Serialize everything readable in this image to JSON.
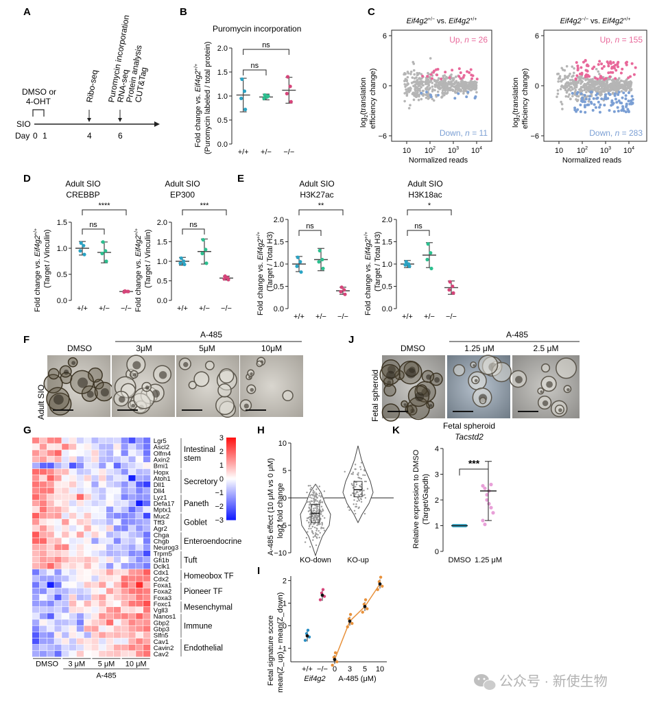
{
  "panels": {
    "A": "A",
    "B": "B",
    "C": "C",
    "D": "D",
    "E": "E",
    "F": "F",
    "G": "G",
    "H": "H",
    "I": "I",
    "J": "J",
    "K": "K"
  },
  "panelA": {
    "treat1": "DMSO or",
    "treat2": "4-OHT",
    "events": [
      "Ribo-seq",
      "Puromycin incorporation",
      "RNA-seq",
      "Protein analysis",
      "CUT&Tag"
    ],
    "row_label": "SIO",
    "day_label": "Day",
    "days": [
      "0",
      "1",
      "4",
      "6"
    ]
  },
  "panelB": {
    "title": "Puromycin incorporation",
    "ylabel_prefix": "Fold change vs. ",
    "ylabel_gene": "Eif4g2",
    "ylabel_sup": "+/+",
    "ylabel2": "(Puromycin labeled / total protein)",
    "yticks": [
      "0.0",
      "0.5",
      "1.0",
      "1.5",
      "2.0"
    ],
    "groups": [
      "+/+",
      "+/−",
      "−/−"
    ],
    "sig": [
      "ns",
      "ns"
    ],
    "chart_data": {
      "type": "scatter",
      "categories": [
        "+/+",
        "+/−",
        "−/−"
      ],
      "means": [
        1.02,
        0.98,
        1.12
      ],
      "sd": [
        0.35,
        0.06,
        0.27
      ],
      "points": [
        [
          1.35,
          1.1,
          0.95,
          0.72
        ],
        [
          1.02,
          0.98,
          0.95,
          1.0
        ],
        [
          1.4,
          1.2,
          1.05,
          0.88
        ]
      ],
      "ylim": [
        0,
        2.0
      ]
    }
  },
  "panelC": {
    "left": {
      "title_a": "Eif4g2",
      "title_a_sup": "+/−",
      "title_mid": " vs. ",
      "title_b": "Eif4g2",
      "title_b_sup": "+/+",
      "up": "Up, ",
      "n": "n",
      "up_n": " = 26",
      "down": "Down, ",
      "down_n": " = 11"
    },
    "right": {
      "title_a": "Eif4g2",
      "title_a_sup": "−/−",
      "title_mid": " vs. ",
      "title_b": "Eif4g2",
      "title_b_sup": "+/+",
      "up": "Up, ",
      "n": "n",
      "up_n": " = 155",
      "down": "Down, ",
      "down_n": " = 283"
    },
    "ylabel1": "log",
    "ylabel_sub": "2",
    "ylabel2": "(translation",
    "ylabel3": "efficiency change)",
    "yticks": [
      "6",
      "0",
      "−6"
    ],
    "xticks": [
      "10",
      "10",
      "10",
      "10"
    ],
    "xexp": [
      "",
      "2",
      "3",
      "4"
    ],
    "xlabel": "Normalized reads",
    "colors": {
      "up": "#e8689a",
      "down": "#7b9fd4",
      "ns": "#b5b5b5"
    }
  },
  "panelD": {
    "title1a": "Adult SIO",
    "title1b": "CREBBP",
    "title2a": "Adult SIO",
    "title2b": "EP300",
    "ylabel1_prefix": "Fold change vs. ",
    "ylabel_gene": "Eif4g2",
    "ylabel_sup": "+/+",
    "ylabel2": "(Target / Vinculin)",
    "yticks1": [
      "0.0",
      "0.5",
      "1.0",
      "1.5"
    ],
    "yticks2": [
      "0.0",
      "0.5",
      "1.0",
      "1.5",
      "2.0"
    ],
    "groups": [
      "+/+",
      "+/−",
      "−/−"
    ],
    "sig1": [
      "ns",
      "****"
    ],
    "sig2": [
      "ns",
      "***"
    ],
    "chart_data": [
      {
        "type": "scatter",
        "title": "CREBBP",
        "means": [
          1.0,
          0.92,
          0.17
        ],
        "sd": [
          0.13,
          0.2,
          0.02
        ],
        "points": [
          [
            1.1,
            1.05,
            0.95,
            0.88
          ],
          [
            1.12,
            0.95,
            0.9,
            0.75
          ],
          [
            0.18,
            0.17,
            0.16,
            0.17
          ]
        ],
        "ylim": [
          0,
          1.5
        ]
      },
      {
        "type": "scatter",
        "title": "EP300",
        "means": [
          1.0,
          1.25,
          0.57
        ],
        "sd": [
          0.1,
          0.32,
          0.05
        ],
        "points": [
          [
            1.08,
            1.0,
            0.95,
            0.92
          ],
          [
            1.55,
            1.3,
            1.2,
            0.95
          ],
          [
            0.62,
            0.58,
            0.55,
            0.53
          ]
        ],
        "ylim": [
          0,
          2.0
        ]
      }
    ]
  },
  "panelE": {
    "title1a": "Adult SIO",
    "title1b": "H3K27ac",
    "title2a": "Adult SIO",
    "title2b": "H3K18ac",
    "ylabel1_prefix": "Fold change vs. ",
    "ylabel_gene": "Eif4g2",
    "ylabel_sup": "+/+",
    "ylabel2": "(Target / Total H3)",
    "yticks": [
      "0.0",
      "0.5",
      "1.0",
      "1.5",
      "2.0"
    ],
    "groups": [
      "+/+",
      "+/−",
      "−/−"
    ],
    "sig1": [
      "ns",
      "**"
    ],
    "sig2": [
      "ns",
      "*"
    ],
    "chart_data": [
      {
        "type": "scatter",
        "title": "H3K27ac",
        "means": [
          1.0,
          1.1,
          0.4
        ],
        "sd": [
          0.17,
          0.25,
          0.08
        ],
        "points": [
          [
            1.15,
            1.05,
            0.95,
            0.82
          ],
          [
            1.3,
            1.1,
            1.05,
            0.9
          ],
          [
            0.48,
            0.42,
            0.38,
            0.32
          ]
        ],
        "ylim": [
          0,
          2.0
        ]
      },
      {
        "type": "scatter",
        "title": "H3K18ac",
        "means": [
          1.0,
          1.2,
          0.47
        ],
        "sd": [
          0.08,
          0.28,
          0.15
        ],
        "points": [
          [
            1.05,
            1.0,
            0.98,
            0.95
          ],
          [
            1.45,
            1.25,
            1.1,
            0.9
          ],
          [
            0.6,
            0.5,
            0.42,
            0.35
          ]
        ],
        "ylim": [
          0,
          2.0
        ]
      }
    ]
  },
  "panelF": {
    "header": "A-485",
    "labels": [
      "DMSO",
      "3μM",
      "5μM",
      "10μM"
    ],
    "side": "Adult SIO"
  },
  "panelJ": {
    "header": "A-485",
    "labels": [
      "DMSO",
      "1.25 μM",
      "2.5 μM"
    ],
    "side": "Fetal spheroid"
  },
  "panelG": {
    "genes": [
      "Lgr5",
      "Ascl2",
      "Olfm4",
      "Axin2",
      "Bmi1",
      "Hopx",
      "Atoh1",
      "Dll1",
      "Dll4",
      "Lyz1",
      "Defa17",
      "Mptx1",
      "Muc2",
      "Tff3",
      "Agr2",
      "Chga",
      "Chgb",
      "Neurog3",
      "Trpm5",
      "Gfi1b",
      "Dclk1",
      "Cdx1",
      "Cdx2",
      "Foxa1",
      "Foxa2",
      "Foxa3",
      "Foxc1",
      "Vgll3",
      "Nanos1",
      "Gbp2",
      "Gbp3",
      "Slfn5",
      "Cav1",
      "Cavin2",
      "Cav2"
    ],
    "groups": [
      {
        "label1": "Intestinal",
        "label2": "stem",
        "start": 0,
        "end": 4
      },
      {
        "label1": "Secretory",
        "label2": "",
        "start": 5,
        "end": 8
      },
      {
        "label1": "Paneth",
        "label2": "",
        "start": 9,
        "end": 11
      },
      {
        "label1": "Goblet",
        "label2": "",
        "start": 12,
        "end": 14
      },
      {
        "label1": "Enteroendocrine",
        "label2": "",
        "start": 15,
        "end": 17
      },
      {
        "label1": "Tuft",
        "label2": "",
        "start": 18,
        "end": 20
      },
      {
        "label1": "Homeobox TF",
        "label2": "",
        "start": 21,
        "end": 22
      },
      {
        "label1": "Pioneer TF",
        "label2": "",
        "start": 23,
        "end": 25
      },
      {
        "label1": "Mesenchymal",
        "label2": "",
        "start": 26,
        "end": 27
      },
      {
        "label1": "Immune",
        "label2": "",
        "start": 28,
        "end": 31
      },
      {
        "label1": "Endothelial",
        "label2": "",
        "start": 32,
        "end": 34
      }
    ],
    "xgroups": [
      "DMSO",
      "3 μM",
      "5 μM",
      "10 μM"
    ],
    "xlabel": "A-485",
    "colorbar": [
      "3",
      "2",
      "1",
      "0",
      "−1",
      "−2",
      "−3"
    ]
  },
  "panelH": {
    "ylabel1": "A-485 effect (10 μM vs 0 μM)",
    "ylabel2": "log2 fold change",
    "yticks": [
      "10",
      "5",
      "0",
      "−5",
      "−10"
    ],
    "cats": [
      "KO-down",
      "KO-up"
    ],
    "chart_data": {
      "type": "violin",
      "categories": [
        "KO-down",
        "KO-up"
      ],
      "medians": [
        -2.8,
        1.5
      ],
      "q1": [
        -4.5,
        0.2
      ],
      "q3": [
        -1.2,
        3.0
      ],
      "ylim": [
        -10,
        10
      ]
    }
  },
  "panelI": {
    "ylabel1": "Fetal signature score",
    "ylabel2": "mean(Z_up) − mean(Z_down)",
    "yticks": [
      "2",
      "1",
      "0",
      "−1"
    ],
    "geno": [
      "+/+",
      "−/−"
    ],
    "gene": "Eif4g2",
    "doses": [
      "0",
      "3",
      "5",
      "10"
    ],
    "xlabel2": "A-485 (μM)",
    "chart_data": {
      "type": "scatter",
      "genotype_means": [
        -0.45,
        1.35
      ],
      "dose_means": [
        -1.5,
        0.2,
        0.85,
        1.85
      ],
      "ylim": [
        -1.5,
        2
      ]
    }
  },
  "panelK": {
    "title1": "Fetal spheroid",
    "title2": "Tacstd2",
    "ylabel1": "Relative expression to DMSO",
    "ylabel2": "(Target/Gapdh)",
    "yticks": [
      "0",
      "1",
      "2",
      "3",
      "4"
    ],
    "groups": [
      "DMSO",
      "1.25 μM"
    ],
    "sig": "***",
    "chart_data": {
      "type": "scatter",
      "categories": [
        "DMSO",
        "1.25 μM"
      ],
      "means": [
        1.0,
        2.35
      ],
      "sd": [
        0,
        1.15
      ],
      "ylim": [
        0,
        4
      ]
    }
  },
  "watermark": "公众号 · 新使生物"
}
